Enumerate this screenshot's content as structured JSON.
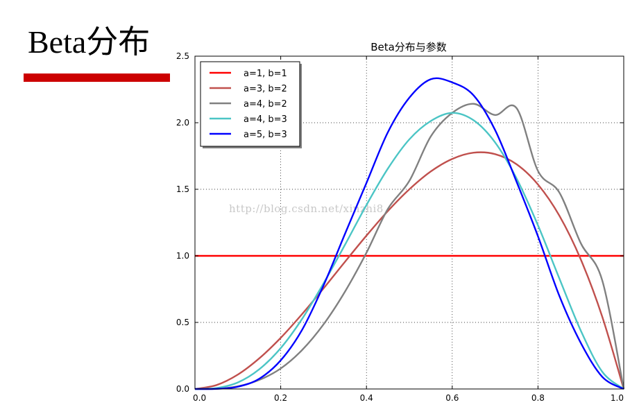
{
  "slide": {
    "title": "Beta分布",
    "accent_color": "#cc0000",
    "watermark": "http://blog.csdn.net/xinzhi8"
  },
  "chart_data": {
    "type": "line",
    "title": "Beta分布与参数",
    "xlabel": "",
    "ylabel": "",
    "xlim": [
      0.0,
      1.0
    ],
    "ylim": [
      0.0,
      2.5
    ],
    "x_ticks": [
      "0.0",
      "0.2",
      "0.4",
      "0.6",
      "0.8",
      "1.0"
    ],
    "y_ticks": [
      "0.0",
      "0.5",
      "1.0",
      "1.5",
      "2.0",
      "2.5"
    ],
    "grid": true,
    "legend_position": "top-left",
    "x": [
      0.0,
      0.05,
      0.1,
      0.15,
      0.2,
      0.25,
      0.3,
      0.35,
      0.4,
      0.45,
      0.5,
      0.55,
      0.6,
      0.65,
      0.7,
      0.75,
      0.8,
      0.85,
      0.9,
      0.95,
      1.0
    ],
    "series": [
      {
        "name": "a=1, b=1",
        "color": "#ff0000",
        "values": [
          1,
          1,
          1,
          1,
          1,
          1,
          1,
          1,
          1,
          1,
          1,
          1,
          1,
          1,
          1,
          1,
          1,
          1,
          1,
          1,
          1
        ]
      },
      {
        "name": "a=3, b=2",
        "color": "#c0504d",
        "values": [
          0,
          0.029,
          0.108,
          0.23,
          0.384,
          0.563,
          0.756,
          0.956,
          1.152,
          1.337,
          1.5,
          1.634,
          1.728,
          1.775,
          1.764,
          1.688,
          1.536,
          1.301,
          0.972,
          0.542,
          0
        ]
      },
      {
        "name": "a=4, b=2",
        "color": "#808080",
        "values": [
          0,
          0.002,
          0.02,
          0.068,
          0.154,
          0.293,
          0.486,
          0.732,
          1.024,
          1.353,
          1.563,
          1.897,
          2.074,
          2.142,
          2.058,
          2.11,
          1.638,
          1.475,
          1.094,
          0.814,
          0
        ]
      },
      {
        "name": "a=4, b=3",
        "color": "#4bc5c5",
        "values": [
          0,
          0.007,
          0.049,
          0.148,
          0.307,
          0.527,
          0.794,
          1.084,
          1.382,
          1.656,
          1.875,
          2.013,
          2.074,
          2.018,
          1.852,
          1.582,
          1.229,
          0.829,
          0.437,
          0.129,
          0
        ]
      },
      {
        "name": "a=5, b=3",
        "color": "#0000ff",
        "values": [
          0,
          0.001,
          0.017,
          0.077,
          0.215,
          0.445,
          0.779,
          1.166,
          1.548,
          1.929,
          2.188,
          2.327,
          2.303,
          2.205,
          1.945,
          1.557,
          1.147,
          0.698,
          0.345,
          0.091,
          0
        ]
      }
    ]
  }
}
